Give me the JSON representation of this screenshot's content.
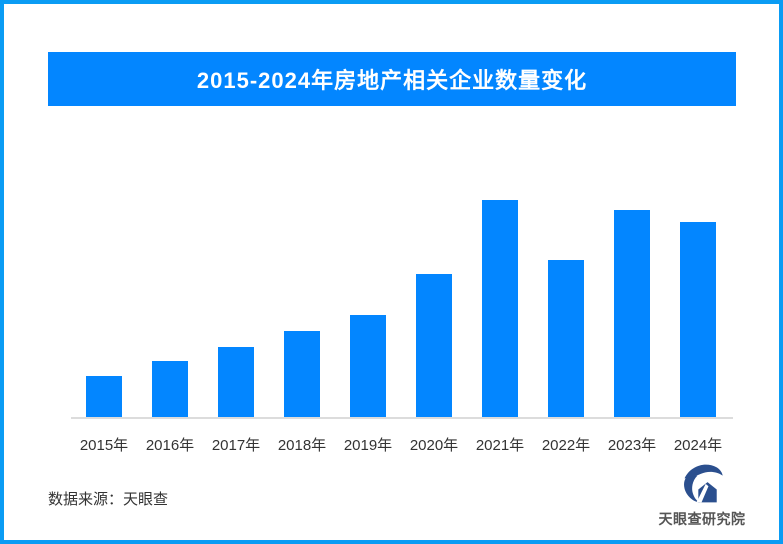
{
  "title": "2015-2024年房地产相关企业数量变化",
  "source_note": "数据来源：天眼查",
  "brand": {
    "name": "天眼查研究院",
    "logo_icon": "tianyancha-swoosh-house-logo"
  },
  "colors": {
    "accent_blue": "#0386FF",
    "frame_border_blue": "#0A9CF4",
    "axis_gray": "#DCDCDC",
    "text_dark": "#333333",
    "logo_navy": "#2B4F8E",
    "brand_text_gray": "#555555"
  },
  "chart_data": {
    "type": "bar",
    "title": "2015-2024年房地产相关企业数量变化",
    "categories": [
      "2015年",
      "2016年",
      "2017年",
      "2018年",
      "2019年",
      "2020年",
      "2021年",
      "2022年",
      "2023年",
      "2024年"
    ],
    "values": [
      19.1,
      25.7,
      32.3,
      39.8,
      47.1,
      65.8,
      100,
      72.3,
      95.2,
      90.1
    ],
    "value_units": "relative bar height (tallest bar = 100; no numeric value axis shown in image)",
    "xlabel": "",
    "ylabel": "",
    "ylim": [
      0,
      100
    ],
    "grid": false,
    "legend": false,
    "bar_color": "#0386FF",
    "axis_line_color": "#DCDCDC"
  }
}
